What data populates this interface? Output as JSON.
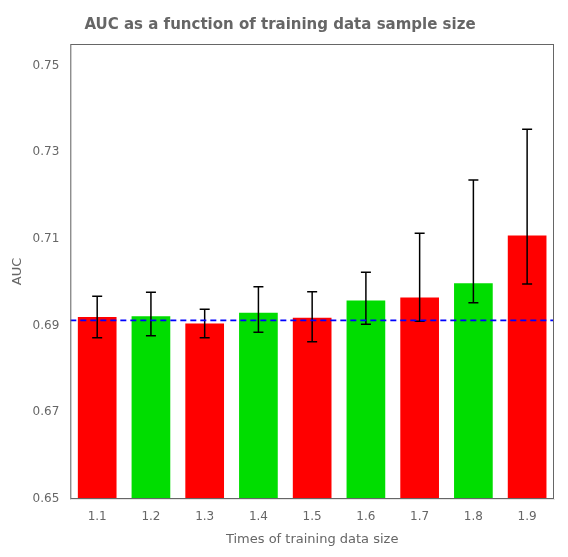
{
  "chart_data": {
    "type": "bar",
    "title": "AUC as a function of training data sample size",
    "x_label": "Times of training data size",
    "y_label": "AUC",
    "categories": [
      "1.1",
      "1.2",
      "1.3",
      "1.4",
      "1.5",
      "1.6",
      "1.7",
      "1.8",
      "1.9"
    ],
    "values": [
      0.692,
      0.6922,
      0.6905,
      0.693,
      0.6918,
      0.6958,
      0.6965,
      0.6998,
      0.7108
    ],
    "colors": [
      "#ff0000",
      "#00dd00",
      "#ff0000",
      "#00dd00",
      "#ff0000",
      "#00dd00",
      "#ff0000",
      "#00dd00",
      "#ff0000"
    ],
    "err_up": [
      0.0048,
      0.0055,
      0.0033,
      0.006,
      0.006,
      0.0065,
      0.0148,
      0.0238,
      0.0245
    ],
    "err_down": [
      0.0048,
      0.0045,
      0.0033,
      0.0045,
      0.0055,
      0.0055,
      0.0055,
      0.0045,
      0.0112
    ],
    "reference_line": {
      "y": 0.6912,
      "color": "#0000ff",
      "line_style": "dashed"
    },
    "ylim": [
      0.65,
      0.755
    ],
    "yticks": [
      0.65,
      0.67,
      0.69,
      0.71,
      0.73,
      0.75
    ],
    "grid": false
  }
}
